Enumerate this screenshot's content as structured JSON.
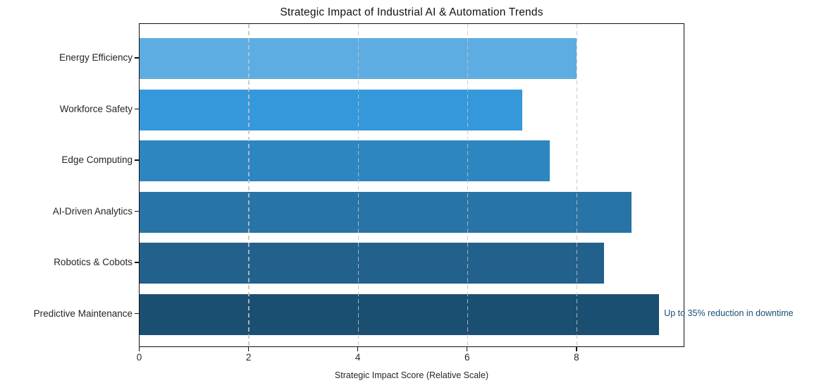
{
  "chart_data": {
    "type": "bar",
    "orientation": "horizontal",
    "title": "Strategic Impact of Industrial AI & Automation Trends",
    "xlabel": "Strategic Impact Score (Relative Scale)",
    "ylabel": "",
    "categories": [
      "Energy Efficiency",
      "Workforce Safety",
      "Edge Computing",
      "AI-Driven Analytics",
      "Robotics & Cobots",
      "Predictive Maintenance"
    ],
    "values": [
      8,
      7,
      7.5,
      9,
      8.5,
      9.5
    ],
    "bar_colors": [
      "#5DADE2",
      "#3498DB",
      "#2E86C1",
      "#2874A6",
      "#21618C",
      "#1B4F72"
    ],
    "xlim": [
      0,
      9.975
    ],
    "xticks": [
      0,
      2,
      4,
      6,
      8
    ],
    "grid": "vertical dashed, drawn over bars",
    "legend": "none",
    "annotation": {
      "text": "Up to 35% reduction in downtime",
      "target_category": "Predictive Maintenance",
      "target_value": 9.5,
      "color": "#1B4F72"
    }
  },
  "colors": {
    "background": "#ffffff",
    "spine": "#111111",
    "grid": "#c3c3c3",
    "tick_text": "#262626",
    "title_text": "#111111"
  }
}
